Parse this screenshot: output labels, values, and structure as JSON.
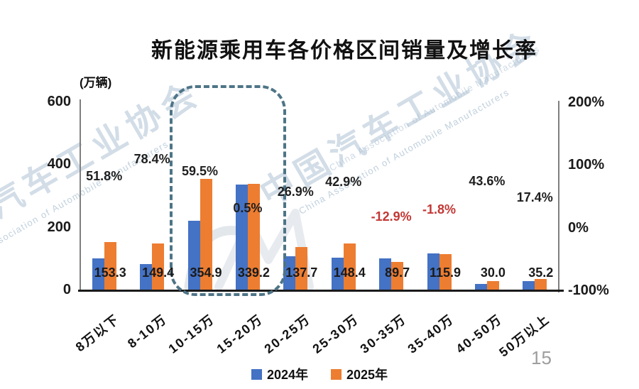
{
  "title": "新能源乘用车各价格区间销量及增长率",
  "unit_label": "(万辆)",
  "page_number": "15",
  "watermark": {
    "cn": "中国汽车工业协会",
    "en": "China Association of Automobile Manufacturers"
  },
  "legend": [
    {
      "label": "2024年",
      "color": "#4472c4"
    },
    {
      "label": "2025年",
      "color": "#ed7d31"
    }
  ],
  "chart_data": {
    "type": "bar",
    "title": "新能源乘用车各价格区间销量及增长率",
    "categories": [
      "8万以下",
      "8-10万",
      "10-15万",
      "15-20万",
      "20-25万",
      "25-30万",
      "30-35万",
      "35-40万",
      "40-50万",
      "50万以上"
    ],
    "series": [
      {
        "name": "2024年",
        "color": "#4472c4",
        "values_estimated": true,
        "values": [
          101.0,
          83.7,
          222.5,
          337.5,
          108.5,
          103.8,
          103.0,
          118.0,
          20.9,
          30.0
        ]
      },
      {
        "name": "2025年",
        "color": "#ed7d31",
        "values": [
          153.3,
          149.4,
          354.9,
          339.2,
          137.7,
          148.4,
          89.7,
          115.9,
          30.0,
          35.2
        ],
        "labels": [
          "153.3",
          "149.4",
          "354.9",
          "339.2",
          "137.7",
          "148.4",
          "89.7",
          "115.9",
          "30.0",
          "35.2"
        ]
      }
    ],
    "growth": {
      "name": "增长率",
      "values": [
        51.8,
        78.4,
        59.5,
        0.5,
        26.9,
        42.9,
        -12.9,
        -1.8,
        43.6,
        17.4
      ],
      "labels": [
        "51.8%",
        "78.4%",
        "59.5%",
        "0.5%",
        "26.9%",
        "42.9%",
        "-12.9%",
        "-1.8%",
        "43.6%",
        "17.4%"
      ],
      "positive_color": "#1f1f1f",
      "negative_color": "#c33734"
    },
    "left_axis": {
      "label": "(万辆)",
      "min": 0,
      "max": 600,
      "tick_values": [
        600,
        400,
        200,
        0
      ],
      "tick_labels": [
        "600",
        "400",
        "200",
        "0"
      ]
    },
    "right_axis": {
      "min": -100,
      "max": 200,
      "tick_values": [
        200,
        100,
        0,
        -100
      ],
      "tick_labels": [
        "200%",
        "100%",
        "0%",
        "-100%"
      ]
    },
    "highlight": {
      "categories": [
        "10-15万",
        "15-20万"
      ],
      "indexes": [
        2,
        3
      ]
    },
    "legend_position": "bottom",
    "grid": false
  }
}
